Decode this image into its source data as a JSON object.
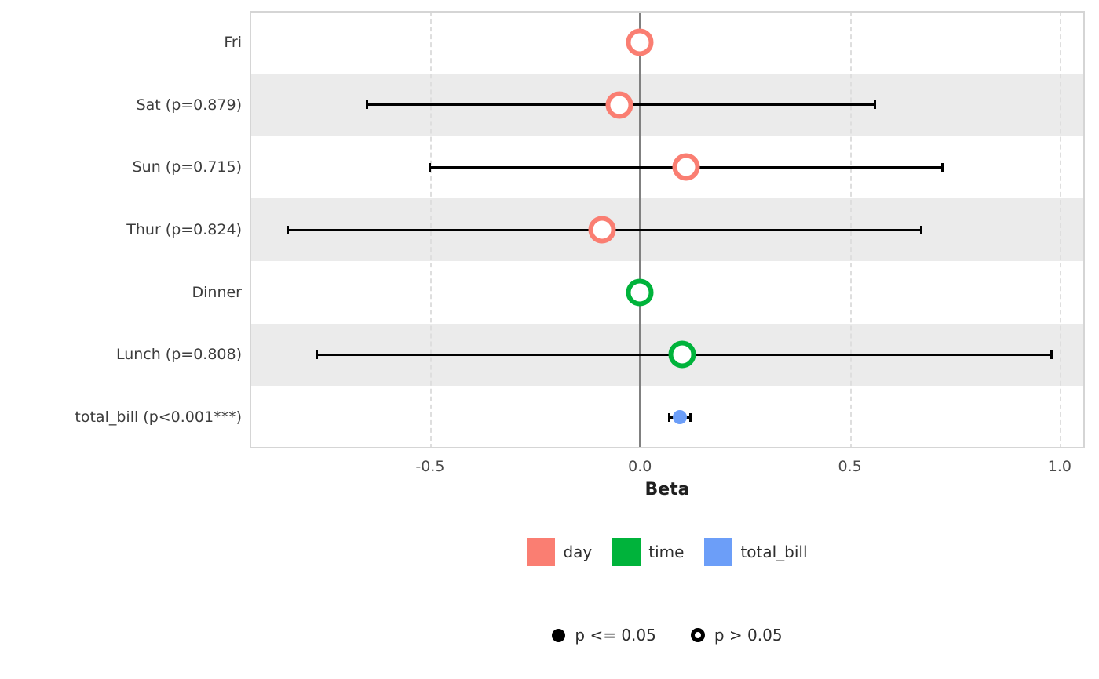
{
  "chart_data": {
    "type": "scatter",
    "variant": "coefficient-forest-plot",
    "xlabel": "Beta",
    "xlim": [
      -0.93,
      1.06
    ],
    "xticks": [
      -0.5,
      0.0,
      0.5,
      1.0
    ],
    "xtick_labels": [
      "-0.5",
      "0.0",
      "0.5",
      "1.0"
    ],
    "zero_line": 0.0,
    "grid": "dashed-vertical-at-ticks",
    "legend_position": "bottom-center",
    "rows": [
      {
        "label": "Fri",
        "beta": 0.0,
        "ci_low": null,
        "ci_high": null,
        "group": "day",
        "point_style": "open"
      },
      {
        "label": "Sat (p=0.879)",
        "beta": -0.05,
        "ci_low": -0.65,
        "ci_high": 0.56,
        "group": "day",
        "point_style": "open"
      },
      {
        "label": "Sun (p=0.715)",
        "beta": 0.11,
        "ci_low": -0.5,
        "ci_high": 0.72,
        "group": "day",
        "point_style": "open"
      },
      {
        "label": "Thur (p=0.824)",
        "beta": -0.09,
        "ci_low": -0.84,
        "ci_high": 0.67,
        "group": "day",
        "point_style": "open"
      },
      {
        "label": "Dinner",
        "beta": 0.0,
        "ci_low": null,
        "ci_high": null,
        "group": "time",
        "point_style": "open"
      },
      {
        "label": "Lunch (p=0.808)",
        "beta": 0.1,
        "ci_low": -0.77,
        "ci_high": 0.98,
        "group": "time",
        "point_style": "open"
      },
      {
        "label": "total_bill (p<0.001***)",
        "beta": 0.095,
        "ci_low": 0.07,
        "ci_high": 0.12,
        "group": "total_bill",
        "point_style": "filled"
      }
    ],
    "groups": {
      "day": "#fa7e72",
      "time": "#00b33b",
      "total_bill": "#6c9ef8"
    },
    "legend_color": [
      {
        "label": "day",
        "color": "#fa7e72"
      },
      {
        "label": "time",
        "color": "#00b33b"
      },
      {
        "label": "total_bill",
        "color": "#6c9ef8"
      }
    ],
    "legend_shape": [
      {
        "label": "p <= 0.05",
        "style": "filled"
      },
      {
        "label": "p > 0.05",
        "style": "open"
      }
    ],
    "colors": {
      "stripe": "#ebebeb",
      "grid": "#dedede",
      "zero_line": "#808080",
      "error_bar": "#000000",
      "panel_border": "#d5d5d5"
    }
  }
}
